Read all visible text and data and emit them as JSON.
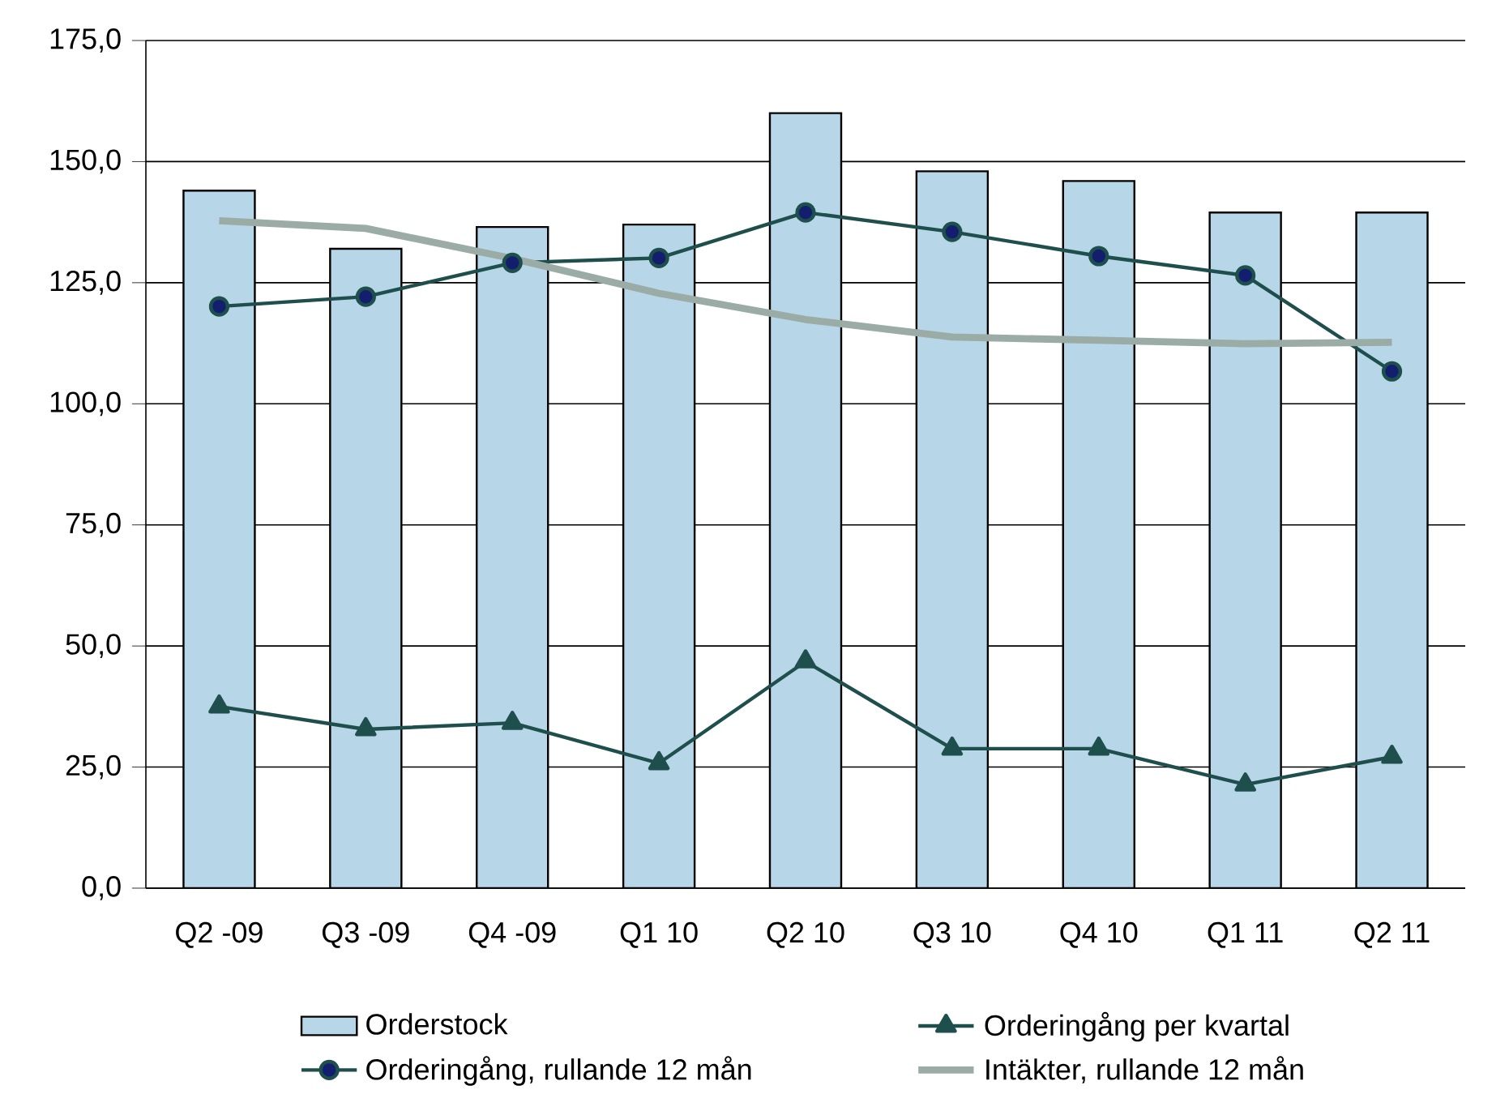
{
  "chart_data": {
    "type": "bar",
    "categories": [
      "Q2 -09",
      "Q3 -09",
      "Q4 -09",
      "Q1 10",
      "Q2 10",
      "Q3 10",
      "Q4 10",
      "Q1 11",
      "Q2 11"
    ],
    "series": [
      {
        "name": "Orderstock",
        "color": "#b7d7e8",
        "values": [
          144,
          132,
          136.5,
          137,
          160,
          148,
          146,
          139.5,
          139.5
        ]
      },
      {
        "name": "Orderingång per kvartal",
        "type": "line",
        "marker": "triangle",
        "color": "#1e4f4c",
        "values": [
          37.5,
          32.8,
          34.1,
          25.8,
          46.8,
          28.8,
          28.8,
          21.4,
          27.1
        ]
      },
      {
        "name": "Orderingång, rullande 12 mån",
        "type": "line",
        "marker": "circle",
        "color": "#1e4f4c",
        "values": [
          120.1,
          122.1,
          129.1,
          130.1,
          139.5,
          135.5,
          130.5,
          126.5,
          106.7
        ]
      },
      {
        "name": "Intäkter, rullande 12 mån",
        "type": "line",
        "marker": "none",
        "color": "#9aaca5",
        "values": [
          137.8,
          136.2,
          130,
          122.8,
          117.4,
          113.8,
          113.1,
          112.4,
          112.7
        ]
      }
    ],
    "ylim": [
      0,
      175
    ],
    "yticks": [
      {
        "value": 0,
        "label": "0,0"
      },
      {
        "value": 25,
        "label": "25,0"
      },
      {
        "value": 50,
        "label": "50,0"
      },
      {
        "value": 75,
        "label": "75,0"
      },
      {
        "value": 100,
        "label": "100,0"
      },
      {
        "value": 125,
        "label": "125,0"
      },
      {
        "value": 150,
        "label": "150,0"
      },
      {
        "value": 175,
        "label": "175,0"
      }
    ],
    "grid": "y",
    "legend": "bottom"
  }
}
